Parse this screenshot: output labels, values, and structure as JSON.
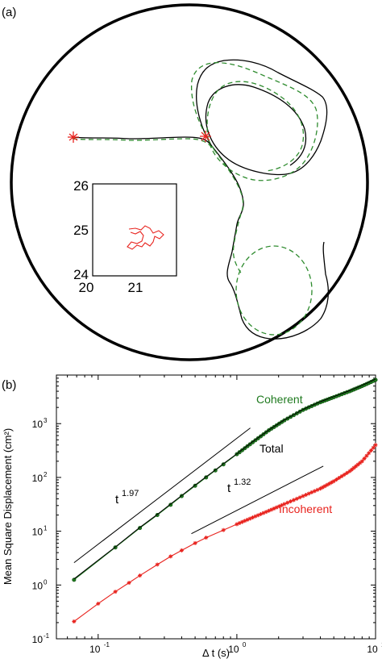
{
  "panel_a": {
    "label": "(a)",
    "inset": {
      "y_ticks": [
        "26",
        "25",
        "24"
      ],
      "x_ticks": [
        "20",
        "21"
      ]
    }
  },
  "panel_b": {
    "label": "(b)"
  },
  "colors": {
    "coherent": "#1f7a1f",
    "incoherent": "#e8231e",
    "total": "#000000",
    "dashed_track": "#2e8b2e",
    "red_track": "#e8231e"
  },
  "chart_data": [
    {
      "type": "line",
      "title": "",
      "description_panel": "(a)",
      "xlabel": "",
      "ylabel": "",
      "series": [],
      "inset": {
        "xlim": [
          20,
          22
        ],
        "ylim": [
          24,
          26
        ],
        "x_ticks": [
          20,
          21
        ],
        "y_ticks": [
          24,
          25,
          26
        ]
      }
    },
    {
      "type": "line",
      "xscale": "log",
      "yscale": "log",
      "xlabel": "Δ t  (s)",
      "ylabel": "Mean Square Displacement  (cm²)",
      "xlim": [
        0.05,
        10
      ],
      "ylim": [
        0.1,
        8000
      ],
      "x_ticks": [
        {
          "base": "10",
          "exp": "-1",
          "value": 0.1
        },
        {
          "base": "10",
          "exp": "0",
          "value": 1
        },
        {
          "base": "10",
          "exp": "1",
          "value": 10
        }
      ],
      "y_ticks": [
        {
          "base": "10",
          "exp": "-1",
          "value": 0.1
        },
        {
          "base": "10",
          "exp": "0",
          "value": 1
        },
        {
          "base": "10",
          "exp": "1",
          "value": 10
        },
        {
          "base": "10",
          "exp": "2",
          "value": 100
        },
        {
          "base": "10",
          "exp": "3",
          "value": 1000
        }
      ],
      "series": [
        {
          "name": "Coherent",
          "color": "#1f7a1f",
          "marker": "circle",
          "points": [
            [
              0.067,
              1.25
            ],
            [
              0.133,
              5.0
            ],
            [
              0.2,
              11.5
            ],
            [
              0.267,
              20.0
            ],
            [
              0.333,
              31
            ],
            [
              0.4,
              45
            ],
            [
              0.5,
              70
            ],
            [
              0.6,
              100
            ],
            [
              0.7,
              135
            ],
            [
              0.8,
              175
            ],
            [
              1.0,
              270
            ],
            [
              1.3,
              450
            ],
            [
              1.7,
              750
            ],
            [
              2.2,
              1150
            ],
            [
              3.0,
              1800
            ],
            [
              4.0,
              2500
            ],
            [
              5.0,
              3100
            ],
            [
              6.5,
              4000
            ],
            [
              8.0,
              5000
            ],
            [
              10.0,
              6500
            ]
          ]
        },
        {
          "name": "Total",
          "color": "#000000",
          "marker": "none",
          "points": [
            [
              0.067,
              1.3
            ],
            [
              0.133,
              5.1
            ],
            [
              0.2,
              11.8
            ],
            [
              0.267,
              20.5
            ],
            [
              0.333,
              32
            ],
            [
              0.4,
              46
            ],
            [
              0.5,
              72
            ],
            [
              0.6,
              103
            ],
            [
              0.7,
              138
            ],
            [
              0.8,
              180
            ],
            [
              1.0,
              275
            ],
            [
              1.3,
              460
            ],
            [
              1.7,
              760
            ],
            [
              2.2,
              1170
            ],
            [
              3.0,
              1830
            ],
            [
              4.0,
              2550
            ],
            [
              5.0,
              3170
            ],
            [
              6.5,
              4100
            ],
            [
              8.0,
              5150
            ],
            [
              10.0,
              6700
            ]
          ]
        },
        {
          "name": "Incoherent",
          "color": "#e8231e",
          "marker": "asterisk",
          "points": [
            [
              0.067,
              0.21
            ],
            [
              0.1,
              0.45
            ],
            [
              0.133,
              0.75
            ],
            [
              0.167,
              1.1
            ],
            [
              0.2,
              1.5
            ],
            [
              0.267,
              2.4
            ],
            [
              0.333,
              3.4
            ],
            [
              0.4,
              4.4
            ],
            [
              0.5,
              6.0
            ],
            [
              0.6,
              7.6
            ],
            [
              0.8,
              10.5
            ],
            [
              1.0,
              13.5
            ],
            [
              1.3,
              18
            ],
            [
              1.7,
              24
            ],
            [
              2.2,
              32
            ],
            [
              3.0,
              45
            ],
            [
              4.0,
              62
            ],
            [
              5.0,
              85
            ],
            [
              6.5,
              130
            ],
            [
              8.0,
              200
            ],
            [
              10.0,
              400
            ]
          ]
        }
      ],
      "annotations": [
        {
          "text_base": "t",
          "text_exp": "1.97",
          "slope": 1.97
        },
        {
          "text_base": "t",
          "text_exp": "1.32",
          "slope": 1.32
        }
      ],
      "legend_labels": {
        "coherent": "Coherent",
        "total": "Total",
        "incoherent": "Incoherent"
      }
    }
  ]
}
